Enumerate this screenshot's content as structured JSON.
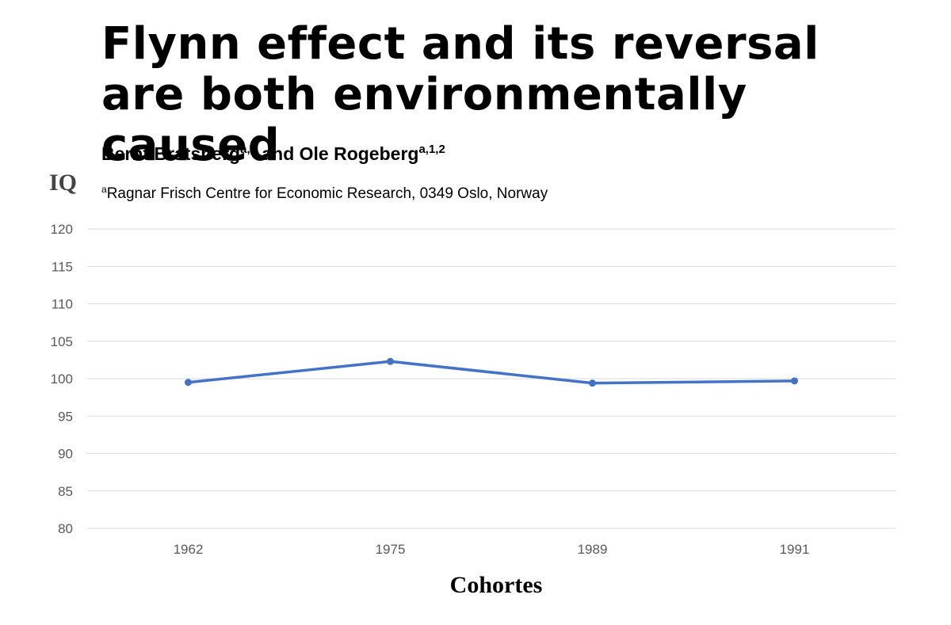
{
  "header": {
    "title": "Flynn effect and its reversal are both environmentally caused",
    "author1": "Bernt Bratsberg",
    "author1_sup": "a,1",
    "and": "and",
    "author2": "Ole Rogeberg",
    "author2_sup": "a,1,2",
    "affiliation_sup": "a",
    "affiliation": "Ragnar Frisch Centre for Economic Research, 0349 Oslo, Norway"
  },
  "chart_data": {
    "type": "line",
    "ylabel": "IQ",
    "xlabel": "Cohortes",
    "categories": [
      "1962",
      "1975",
      "1989",
      "1991"
    ],
    "series": [
      {
        "values": [
          99.5,
          102.3,
          99.4,
          99.7
        ],
        "color": "#4472c4"
      }
    ],
    "ylim": [
      80,
      120
    ],
    "yticks": [
      80,
      85,
      90,
      95,
      100,
      105,
      110,
      115,
      120
    ],
    "grid": true,
    "gridColor": "#d9d9d9"
  }
}
